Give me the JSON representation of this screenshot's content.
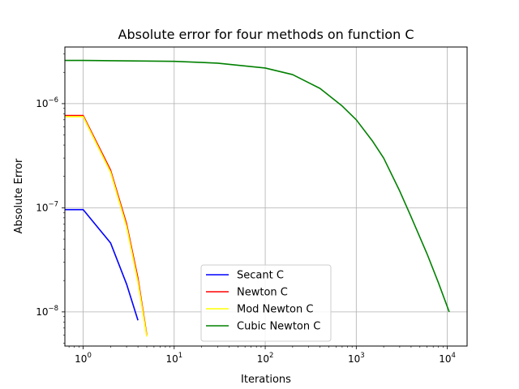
{
  "chart_data": {
    "type": "line",
    "title": "Absolute error for four methods on function C",
    "xlabel": "Iterations",
    "ylabel": "Absolute Error",
    "xscale": "log",
    "yscale": "log",
    "xlim": [
      0.63,
      16500
    ],
    "ylim": [
      4.7e-09,
      3.5e-06
    ],
    "grid": true,
    "legend_position": "lower center",
    "x_ticks": [
      {
        "value": 1,
        "base": "10",
        "exp": "0"
      },
      {
        "value": 10,
        "base": "10",
        "exp": "1"
      },
      {
        "value": 100,
        "base": "10",
        "exp": "2"
      },
      {
        "value": 1000,
        "base": "10",
        "exp": "3"
      },
      {
        "value": 10000,
        "base": "10",
        "exp": "4"
      }
    ],
    "y_ticks": [
      {
        "value": 1e-08,
        "base": "10",
        "exp": "−8"
      },
      {
        "value": 1e-07,
        "base": "10",
        "exp": "−7"
      },
      {
        "value": 1e-06,
        "base": "10",
        "exp": "−6"
      }
    ],
    "series": [
      {
        "name": "Secant C",
        "color": "#0000ff",
        "x": [
          0.63,
          1,
          2,
          3,
          4
        ],
        "y": [
          9.6e-08,
          9.6e-08,
          4.6e-08,
          1.85e-08,
          8.3e-09
        ]
      },
      {
        "name": "Newton C",
        "color": "#ff0000",
        "x": [
          0.63,
          1,
          2,
          3,
          4,
          5
        ],
        "y": [
          7.7e-07,
          7.7e-07,
          2.3e-07,
          7e-08,
          2.1e-08,
          6e-09
        ]
      },
      {
        "name": "Mod Newton C",
        "color": "#ffff00",
        "x": [
          0.63,
          1,
          2,
          3,
          4,
          5
        ],
        "y": [
          7.5e-07,
          7.5e-07,
          2.2e-07,
          6.6e-08,
          1.95e-08,
          5.8e-09
        ]
      },
      {
        "name": "Cubic Newton C",
        "color": "#008000",
        "x": [
          0.63,
          1,
          10,
          30,
          100,
          200,
          400,
          700,
          1000,
          1500,
          2000,
          3000,
          4000,
          6000,
          8000,
          10500
        ],
        "y": [
          2.6e-06,
          2.6e-06,
          2.55e-06,
          2.45e-06,
          2.2e-06,
          1.9e-06,
          1.4e-06,
          9.5e-07,
          7e-07,
          4.4e-07,
          3e-07,
          1.45e-07,
          8.2e-08,
          3.6e-08,
          1.9e-08,
          1e-08
        ]
      }
    ]
  }
}
